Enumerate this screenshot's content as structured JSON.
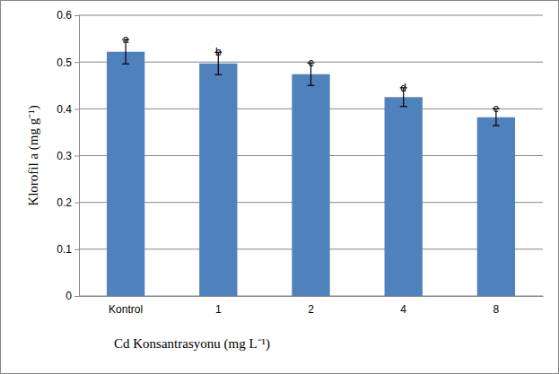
{
  "chart_data": {
    "type": "bar",
    "x_label": "Cd Konsantrasyonu (mg L⁻¹)",
    "y_label": "Klorofil a (mg g⁻¹)",
    "categories": [
      "Kontrol",
      "1",
      "2",
      "4",
      "8"
    ],
    "values": [
      0.522,
      0.497,
      0.474,
      0.425,
      0.382
    ],
    "errors": [
      0.026,
      0.024,
      0.024,
      0.02,
      0.018
    ],
    "annotations": [
      "a",
      "b",
      "c",
      "d",
      "e"
    ],
    "color": "#4f81bd",
    "ylim": [
      0,
      0.6
    ],
    "yticks": [
      0,
      0.1,
      0.2,
      0.3,
      0.4,
      0.5,
      0.6
    ],
    "grid": true
  }
}
